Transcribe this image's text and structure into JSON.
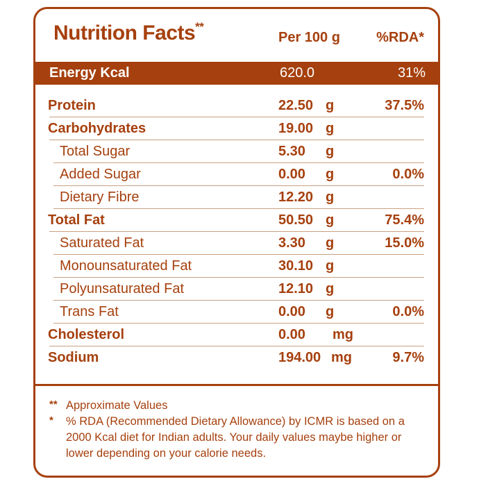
{
  "header": {
    "title": "Nutrition Facts",
    "title_mark": "**",
    "per_label": "Per 100 g",
    "rda_label": "%RDA*"
  },
  "energy": {
    "name": "Energy Kcal",
    "value": "620.0",
    "rda": "31%"
  },
  "rows": [
    {
      "name": "Protein",
      "value": "22.50",
      "unit": "g",
      "rda": "37.5%"
    },
    {
      "name": "Carbohydrates",
      "value": "19.00",
      "unit": "g",
      "rda": ""
    },
    {
      "name": "Total Sugar",
      "value": "5.30",
      "unit": "g",
      "rda": ""
    },
    {
      "name": "Added Sugar",
      "value": "0.00",
      "unit": "g",
      "rda": "0.0%"
    },
    {
      "name": "Dietary Fibre",
      "value": "12.20",
      "unit": "g",
      "rda": ""
    },
    {
      "name": "Total Fat",
      "value": "50.50",
      "unit": "g",
      "rda": "75.4%"
    },
    {
      "name": "Saturated Fat",
      "value": "3.30",
      "unit": "g",
      "rda": "15.0%"
    },
    {
      "name": "Monounsaturated Fat",
      "value": "30.10",
      "unit": "g",
      "rda": ""
    },
    {
      "name": "Polyunsaturated Fat",
      "value": "12.10",
      "unit": "g",
      "rda": ""
    },
    {
      "name": "Trans Fat",
      "value": "0.00",
      "unit": "g",
      "rda": "0.0%"
    },
    {
      "name": "Cholesterol",
      "value": "0.00",
      "unit": "mg",
      "rda": ""
    },
    {
      "name": "Sodium",
      "value": "194.00",
      "unit": "mg",
      "rda": "9.7%"
    }
  ],
  "footnotes": [
    {
      "mark": "**",
      "text": "Approximate Values"
    },
    {
      "mark": "*",
      "text": "% RDA (Recommended Dietary Allowance) by ICMR is based on a 2000 Kcal diet for Indian adults. Your daily values maybe higher or lower depending on your calorie needs."
    }
  ],
  "colors": {
    "brand": "#a6400e",
    "rule": "#c9a080"
  }
}
